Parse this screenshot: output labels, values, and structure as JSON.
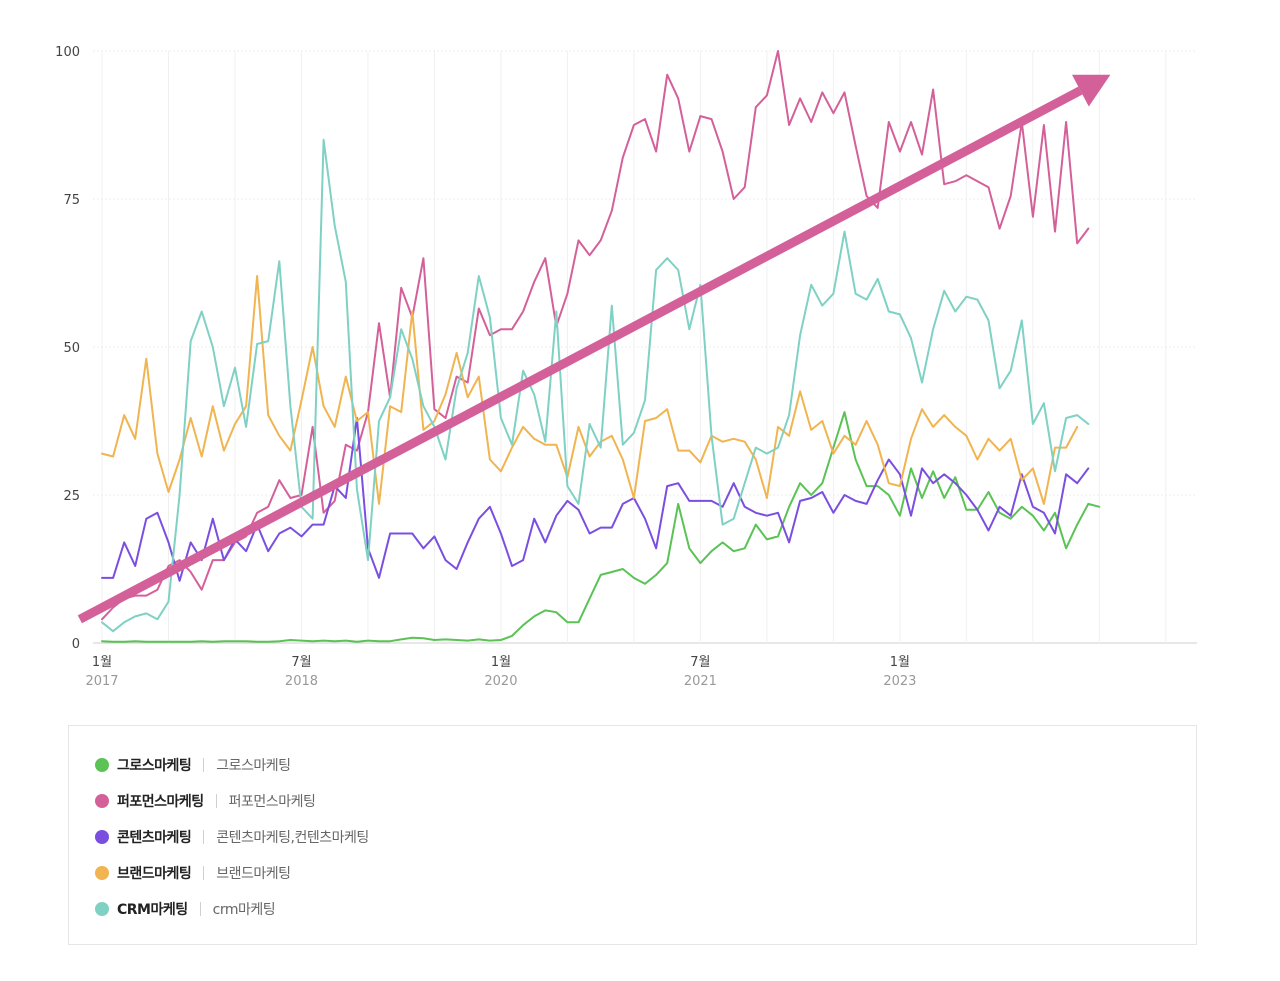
{
  "chart_data": {
    "type": "line",
    "title": "",
    "xlabel": "",
    "ylabel": "",
    "ylim": [
      0,
      100
    ],
    "y_ticks": [
      "0",
      "25",
      "50",
      "75",
      "100"
    ],
    "x_range_months": [
      0,
      98
    ],
    "x_ticks": [
      {
        "month": 0,
        "label": "1월",
        "sub": "2017"
      },
      {
        "month": 18,
        "label": "7월",
        "sub": "2018"
      },
      {
        "month": 36,
        "label": "1월",
        "sub": "2020"
      },
      {
        "month": 54,
        "label": "7월",
        "sub": "2021"
      },
      {
        "month": 72,
        "label": "1월",
        "sub": "2023"
      }
    ],
    "trend_arrow": {
      "from": [
        -2,
        4
      ],
      "to": [
        91,
        96
      ],
      "color": "#d4609a"
    },
    "series": [
      {
        "name": "그로스마케팅",
        "keywords": "그로스마케팅",
        "color": "#5bc355",
        "values": [
          0.3,
          0.2,
          0.2,
          0.3,
          0.2,
          0.2,
          0.2,
          0.2,
          0.2,
          0.3,
          0.2,
          0.3,
          0.3,
          0.3,
          0.2,
          0.2,
          0.3,
          0.5,
          0.4,
          0.3,
          0.4,
          0.3,
          0.4,
          0.2,
          0.4,
          0.3,
          0.3,
          0.6,
          0.9,
          0.8,
          0.5,
          0.6,
          0.5,
          0.4,
          0.6,
          0.4,
          0.5,
          1.2,
          3.0,
          4.5,
          5.5,
          5.2,
          3.5,
          3.5,
          7.5,
          11.5,
          12.0,
          12.5,
          11.0,
          10.0,
          11.5,
          13.5,
          23.5,
          16.0,
          13.5,
          15.5,
          17.0,
          15.5,
          16.0,
          20.0,
          17.5,
          18.0,
          23.0,
          27.0,
          25.0,
          27.0,
          33.0,
          39.0,
          31.0,
          26.5,
          26.5,
          25.0,
          21.5,
          29.5,
          24.5,
          29.0,
          24.5,
          28.0,
          22.5,
          22.5,
          25.5,
          22.0,
          21.0,
          23.0,
          21.5,
          19.0,
          22.0,
          16.0,
          20.0,
          23.5,
          23.0
        ]
      },
      {
        "name": "퍼포먼스마케팅",
        "keywords": "퍼포먼스마케팅",
        "color": "#d4609a",
        "values": [
          4.0,
          6.0,
          7.5,
          8.0,
          8.0,
          9.0,
          13.0,
          14.0,
          12.0,
          9.0,
          14.0,
          14.0,
          17.0,
          18.0,
          22.0,
          23.0,
          27.5,
          24.5,
          25.0,
          36.5,
          22.0,
          24.0,
          33.5,
          32.5,
          39.0,
          54.0,
          41.5,
          60.0,
          55.0,
          65.0,
          39.5,
          38.0,
          45.0,
          44.0,
          56.5,
          52.0,
          53.0,
          53.0,
          56.0,
          61.0,
          65.0,
          53.5,
          59.0,
          68.0,
          65.5,
          68.0,
          73.0,
          82.0,
          87.5,
          88.5,
          83.0,
          96.0,
          92.0,
          83.0,
          89.0,
          88.5,
          83.0,
          75.0,
          77.0,
          90.5,
          92.5,
          100.0,
          87.5,
          92.0,
          88.0,
          93.0,
          89.5,
          93.0,
          84.0,
          75.5,
          73.5,
          88.0,
          83.0,
          88.0,
          82.5,
          93.5,
          77.5,
          78.0,
          79.0,
          78.0,
          77.0,
          70.0,
          75.5,
          88.0,
          72.0,
          87.5,
          69.5,
          88.0,
          67.5,
          70.0
        ]
      },
      {
        "name": "콘텐츠마케팅",
        "keywords": "콘텐츠마케팅,컨텐츠마케팅",
        "color": "#7a4fe0",
        "values": [
          11.0,
          11.0,
          17.0,
          13.0,
          21.0,
          22.0,
          17.0,
          10.5,
          17.0,
          14.0,
          21.0,
          14.0,
          17.5,
          15.5,
          20.0,
          15.5,
          18.5,
          19.5,
          18.0,
          20.0,
          20.0,
          26.5,
          24.5,
          38.0,
          16.0,
          11.0,
          18.5,
          18.5,
          18.5,
          16.0,
          18.0,
          14.0,
          12.5,
          17.0,
          21.0,
          23.0,
          18.5,
          13.0,
          14.0,
          21.0,
          17.0,
          21.5,
          24.0,
          22.5,
          18.5,
          19.5,
          19.5,
          23.5,
          24.5,
          21.0,
          16.0,
          26.5,
          27.0,
          24.0,
          24.0,
          24.0,
          23.0,
          27.0,
          23.0,
          22.0,
          21.5,
          22.0,
          17.0,
          24.0,
          24.5,
          25.5,
          22.0,
          25.0,
          24.0,
          23.5,
          27.5,
          31.0,
          28.5,
          21.5,
          29.5,
          27.0,
          28.5,
          27.0,
          25.0,
          22.5,
          19.0,
          23.0,
          21.5,
          28.5,
          23.0,
          22.0,
          18.5,
          28.5,
          27.0,
          29.5
        ]
      },
      {
        "name": "브랜드마케팅",
        "keywords": "브랜드마케팅",
        "color": "#f0b450",
        "values": [
          32.0,
          31.5,
          38.5,
          34.5,
          48.0,
          32.0,
          25.5,
          31.0,
          38.0,
          31.5,
          40.0,
          32.5,
          37.0,
          40.0,
          62.0,
          38.5,
          35.0,
          32.5,
          41.0,
          50.0,
          40.0,
          36.5,
          45.0,
          37.5,
          39.0,
          23.5,
          40.0,
          39.0,
          56.0,
          36.0,
          37.5,
          42.0,
          49.0,
          41.5,
          45.0,
          31.0,
          29.0,
          33.0,
          36.5,
          34.5,
          33.5,
          33.5,
          28.0,
          36.5,
          31.5,
          34.0,
          35.0,
          31.0,
          24.5,
          37.5,
          38.0,
          39.5,
          32.5,
          32.5,
          30.5,
          35.0,
          34.0,
          34.5,
          34.0,
          31.0,
          24.5,
          36.5,
          35.0,
          42.5,
          36.0,
          37.5,
          32.0,
          35.0,
          33.5,
          37.5,
          33.5,
          27.0,
          26.5,
          34.5,
          39.5,
          36.5,
          38.5,
          36.5,
          35.0,
          31.0,
          34.5,
          32.5,
          34.5,
          27.5,
          29.5,
          23.5,
          33.0,
          33.0,
          36.5
        ]
      },
      {
        "name": "CRM마케팅",
        "keywords": "crm마케팅",
        "color": "#7fd1c4",
        "values": [
          3.5,
          2.0,
          3.5,
          4.5,
          5.0,
          4.0,
          7.0,
          25.0,
          51.0,
          56.0,
          50.0,
          40.0,
          46.5,
          36.5,
          50.5,
          51.0,
          64.5,
          40.0,
          23.0,
          21.0,
          85.0,
          70.5,
          61.0,
          26.0,
          14.0,
          37.5,
          41.5,
          53.0,
          48.0,
          40.0,
          36.5,
          31.0,
          43.0,
          49.0,
          62.0,
          55.0,
          38.0,
          33.5,
          46.0,
          42.0,
          34.0,
          56.0,
          26.5,
          23.5,
          37.0,
          33.0,
          57.0,
          33.5,
          35.5,
          41.0,
          63.0,
          65.0,
          63.0,
          53.0,
          60.5,
          35.0,
          20.0,
          21.0,
          27.0,
          33.0,
          32.0,
          33.0,
          38.5,
          52.0,
          60.5,
          57.0,
          59.0,
          69.5,
          59.0,
          58.0,
          61.5,
          56.0,
          55.5,
          51.5,
          44.0,
          53.0,
          59.5,
          56.0,
          58.5,
          58.0,
          54.5,
          43.0,
          46.0,
          54.5,
          37.0,
          40.5,
          29.0,
          38.0,
          38.5,
          37.0
        ]
      }
    ]
  },
  "legend": {
    "items": [
      {
        "name": "그로스마케팅",
        "keywords": "그로스마케팅",
        "color": "#5bc355"
      },
      {
        "name": "퍼포먼스마케팅",
        "keywords": "퍼포먼스마케팅",
        "color": "#d4609a"
      },
      {
        "name": "콘텐츠마케팅",
        "keywords": "콘텐츠마케팅,컨텐츠마케팅",
        "color": "#7a4fe0"
      },
      {
        "name": "브랜드마케팅",
        "keywords": "브랜드마케팅",
        "color": "#f0b450"
      },
      {
        "name": "CRM마케팅",
        "keywords": "crm마케팅",
        "color": "#7fd1c4"
      }
    ]
  }
}
